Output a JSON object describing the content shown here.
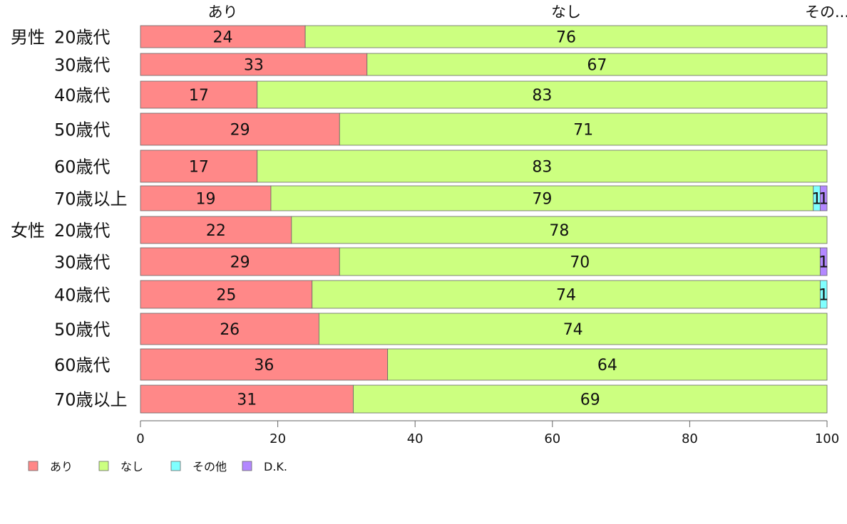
{
  "chart_data": {
    "type": "bar",
    "orientation": "horizontal",
    "stacked": true,
    "groups": [
      {
        "label": "男性",
        "rows": [
          "20歳代",
          "30歳代",
          "40歳代",
          "50歳代",
          "60歳代",
          "70歳以上"
        ]
      },
      {
        "label": "女性",
        "rows": [
          "20歳代",
          "30歳代",
          "40歳代",
          "50歳代",
          "60歳代",
          "70歳以上"
        ]
      }
    ],
    "series": [
      {
        "name": "あり",
        "color": "#ff8888",
        "values": [
          24,
          33,
          17,
          29,
          17,
          19,
          22,
          29,
          25,
          26,
          36,
          31
        ]
      },
      {
        "name": "なし",
        "color": "#ccff80",
        "values": [
          76,
          67,
          83,
          71,
          83,
          79,
          78,
          70,
          74,
          74,
          64,
          69
        ]
      },
      {
        "name": "その他",
        "color": "#80ffff",
        "values": [
          0,
          0,
          0,
          0,
          0,
          1,
          0,
          0,
          1,
          0,
          0,
          0
        ]
      },
      {
        "name": "D.K.",
        "color": "#b388ff",
        "values": [
          0,
          0,
          0,
          0,
          0,
          1,
          0,
          1,
          0,
          0,
          0,
          0
        ]
      }
    ],
    "top_labels": [
      "あり",
      "なし",
      "その..."
    ],
    "xticks": [
      0,
      20,
      40,
      60,
      80,
      100
    ],
    "xlim": [
      0,
      100
    ],
    "legend_position": "bottom-left",
    "grid": false
  }
}
